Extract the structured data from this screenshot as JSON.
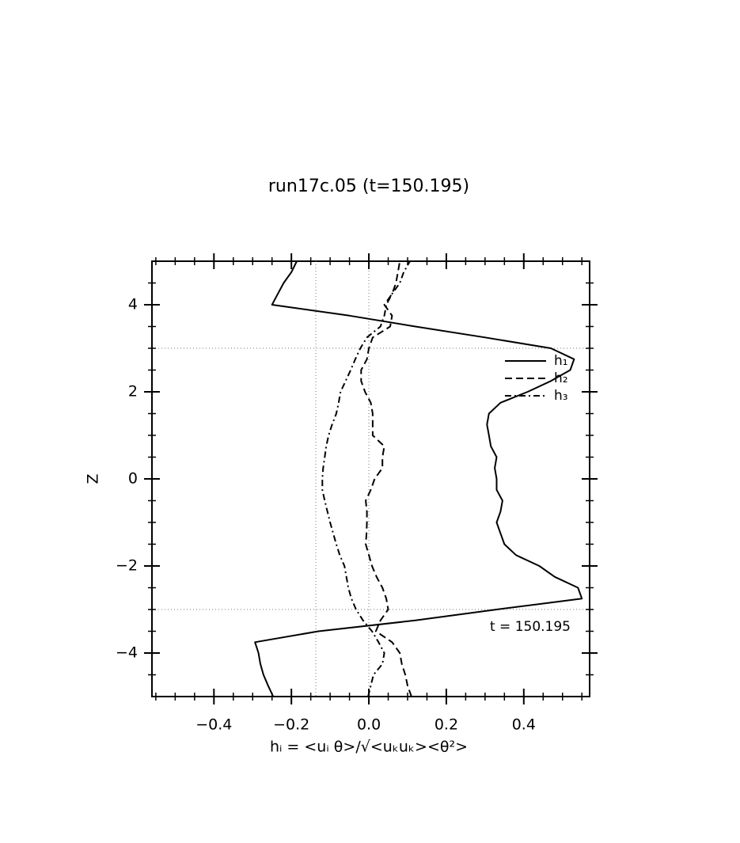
{
  "chart_data": {
    "type": "line",
    "title": "run17c.05 (t=150.195)",
    "x_label": "hᵢ = <uᵢ θ>/√<uₖuₖ><θ²>",
    "y_label": "Z",
    "annotation": "t = 150.195",
    "y": [
      -5,
      -4.75,
      -4.5,
      -4.25,
      -4,
      -3.75,
      -3.5,
      -3.25,
      -3,
      -2.75,
      -2.5,
      -2.25,
      -2,
      -1.75,
      -1.5,
      -1.25,
      -1,
      -0.75,
      -0.5,
      -0.25,
      0,
      0.25,
      0.5,
      0.75,
      1,
      1.25,
      1.5,
      1.75,
      2,
      2.25,
      2.5,
      2.75,
      3,
      3.25,
      3.5,
      3.75,
      4,
      4.25,
      4.5,
      4.75,
      5
    ],
    "series": [
      {
        "name": "h₁",
        "color": "#000000",
        "dash": "solid",
        "values": [
          -0.247,
          -0.26,
          -0.272,
          -0.28,
          -0.285,
          -0.294,
          -0.13,
          0.12,
          0.33,
          0.55,
          0.54,
          0.48,
          0.44,
          0.38,
          0.35,
          0.34,
          0.33,
          0.34,
          0.345,
          0.33,
          0.33,
          0.325,
          0.33,
          0.315,
          0.31,
          0.305,
          0.31,
          0.34,
          0.41,
          0.47,
          0.52,
          0.53,
          0.47,
          0.3,
          0.12,
          -0.05,
          -0.25,
          -0.235,
          -0.22,
          -0.2,
          -0.186
        ]
      },
      {
        "name": "h₂",
        "color": "#000000",
        "dash": "dashed",
        "values": [
          0.11,
          0.1,
          0.094,
          0.085,
          0.08,
          0.06,
          0.018,
          0.03,
          0.05,
          0.045,
          0.035,
          0.02,
          0.008,
          0.0,
          -0.008,
          -0.006,
          -0.005,
          -0.005,
          -0.008,
          0.005,
          0.015,
          0.035,
          0.035,
          0.04,
          0.01,
          0.01,
          0.01,
          0.005,
          -0.01,
          -0.02,
          -0.02,
          -0.005,
          0.0,
          0.01,
          0.055,
          0.06,
          0.04,
          0.06,
          0.07,
          0.075,
          0.08
        ]
      },
      {
        "name": "h₃",
        "color": "#000000",
        "dash": "dashdot",
        "values": [
          -0.002,
          0.005,
          0.012,
          0.035,
          0.04,
          0.025,
          0.008,
          -0.015,
          -0.033,
          -0.045,
          -0.053,
          -0.058,
          -0.063,
          -0.075,
          -0.084,
          -0.092,
          -0.1,
          -0.107,
          -0.114,
          -0.12,
          -0.12,
          -0.118,
          -0.114,
          -0.11,
          -0.104,
          -0.095,
          -0.084,
          -0.078,
          -0.073,
          -0.06,
          -0.047,
          -0.035,
          -0.022,
          -0.005,
          0.03,
          0.04,
          0.045,
          0.06,
          0.08,
          0.09,
          0.106
        ]
      }
    ],
    "xlim": [
      -0.56,
      0.57
    ],
    "ylim": [
      -5,
      5
    ],
    "xticks": [
      {
        "value": -0.4,
        "label": "−0.4"
      },
      {
        "value": -0.2,
        "label": "−0.2"
      },
      {
        "value": 0,
        "label": "0.0"
      },
      0.2,
      0.4
    ],
    "yticks": [
      {
        "value": -4,
        "label": "−4"
      },
      {
        "value": -2,
        "label": "−2"
      },
      0,
      2,
      4
    ],
    "xticks_minor": [
      -0.55,
      -0.5,
      -0.45,
      -0.35,
      -0.3,
      -0.25,
      -0.15,
      -0.1,
      -0.05,
      0.05,
      0.1,
      0.15,
      0.25,
      0.3,
      0.35,
      0.45,
      0.5,
      0.55
    ],
    "yticks_minor": [
      -4.5,
      -3.5,
      -3,
      -2.5,
      -1.5,
      -1,
      -0.5,
      0.5,
      1,
      1.5,
      2.5,
      3,
      3.5,
      4.5
    ],
    "ref_lines_x": [
      -0.137,
      0
    ],
    "ref_lines_y": [
      -3,
      3
    ],
    "legend": "upper right"
  }
}
